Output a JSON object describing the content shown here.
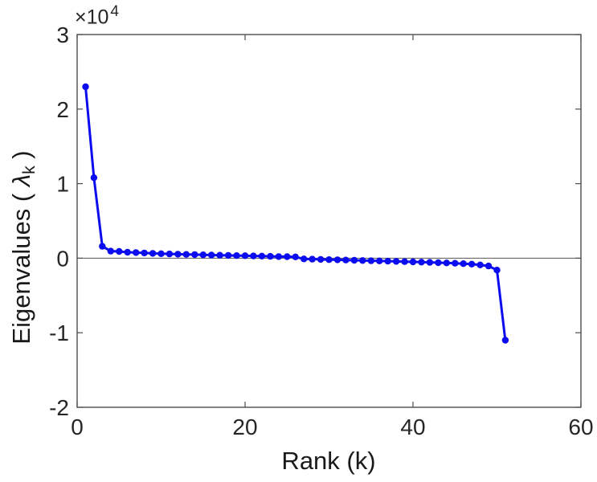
{
  "figure": {
    "xlabel": "Rank (k)",
    "ylabel": {
      "prefix": "Eigenvalues (  ",
      "symbol": "λ",
      "subscript": "k",
      "suffix": " )"
    },
    "exponent": {
      "base": "×10",
      "power": "4"
    }
  },
  "chart_data": {
    "type": "line",
    "title": "",
    "xlabel": "Rank (k)",
    "ylabel": "Eigenvalues ( λ_k )",
    "xlim": [
      0,
      60
    ],
    "ylim": [
      -20000,
      30000
    ],
    "x_ticks": [
      0,
      20,
      40,
      60
    ],
    "y_ticks": [
      -20000,
      -10000,
      0,
      10000,
      20000,
      30000
    ],
    "y_tick_labels": [
      "-2",
      "-1",
      "0",
      "1",
      "2",
      "3"
    ],
    "y_axis_exponent": "×10^4",
    "grid": false,
    "legend": "none",
    "zero_line": true,
    "marker": "circle",
    "colors": {
      "line": "#0b0bef",
      "axis": "#4d4d4d",
      "text": "#262626",
      "zero_line": "#555555"
    },
    "series": [
      {
        "name": "eigenvalues",
        "x": [
          1,
          2,
          3,
          4,
          5,
          6,
          7,
          8,
          9,
          10,
          11,
          12,
          13,
          14,
          15,
          16,
          17,
          18,
          19,
          20,
          21,
          22,
          23,
          24,
          25,
          26,
          27,
          28,
          29,
          30,
          31,
          32,
          33,
          34,
          35,
          36,
          37,
          38,
          39,
          40,
          41,
          42,
          43,
          44,
          45,
          46,
          47,
          48,
          49,
          50,
          51
        ],
        "y": [
          23000,
          10800,
          1600,
          950,
          900,
          800,
          750,
          700,
          650,
          600,
          570,
          540,
          510,
          480,
          450,
          420,
          400,
          380,
          350,
          330,
          300,
          280,
          250,
          220,
          200,
          170,
          -100,
          -130,
          -160,
          -190,
          -220,
          -250,
          -280,
          -310,
          -340,
          -370,
          -400,
          -430,
          -460,
          -500,
          -530,
          -560,
          -600,
          -640,
          -680,
          -730,
          -800,
          -900,
          -1050,
          -1600,
          -11000
        ]
      }
    ]
  }
}
